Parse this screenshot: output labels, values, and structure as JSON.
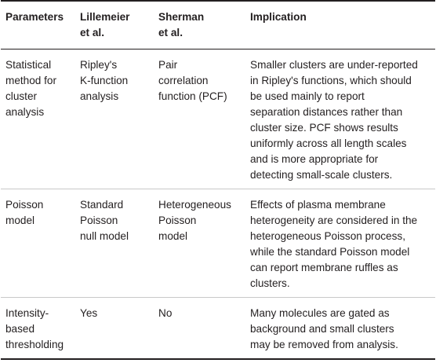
{
  "table": {
    "headers": [
      "Parameters",
      "Lillemeier\net al.",
      "Sherman\net al.",
      "Implication"
    ],
    "rows": [
      [
        "Statistical\nmethod for\ncluster\nanalysis",
        "Ripley's\nK-function\nanalysis",
        "Pair\ncorrelation\nfunction (PCF)",
        "Smaller clusters are under-reported\nin Ripley's functions, which should\nbe used mainly to report\nseparation distances rather than\ncluster size. PCF shows results\nuniformly across all length scales\nand is more appropriate for\ndetecting small-scale clusters."
      ],
      [
        "Poisson\nmodel",
        "Standard\nPoisson\nnull model",
        "Heterogeneous\nPoisson\nmodel",
        "Effects of plasma membrane\nheterogeneity are considered in the\nheterogeneous Poisson process,\nwhile the standard Poisson model\ncan report membrane ruffles as\nclusters."
      ],
      [
        "Intensity-\nbased\nthresholding",
        "Yes",
        "No",
        "Many molecules are gated as\nbackground and small clusters\nmay be removed from analysis."
      ]
    ]
  }
}
